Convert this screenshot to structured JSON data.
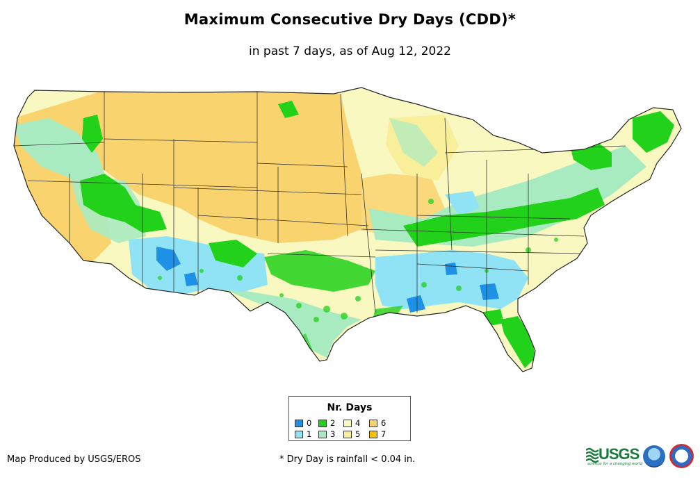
{
  "title": "Maximum Consecutive Dry Days (CDD)*",
  "subtitle": "in past 7 days, as of Aug 12, 2022",
  "legend": {
    "title": "Nr. Days",
    "items": [
      {
        "label": "0",
        "color": "#1e90e6"
      },
      {
        "label": "1",
        "color": "#8fe3f5"
      },
      {
        "label": "2",
        "color": "#22d11a"
      },
      {
        "label": "3",
        "color": "#a9ebc1"
      },
      {
        "label": "4",
        "color": "#f8f8c0"
      },
      {
        "label": "5",
        "color": "#f9ee9a"
      },
      {
        "label": "6",
        "color": "#f9d36e"
      },
      {
        "label": "7",
        "color": "#f7c300"
      }
    ]
  },
  "footer": {
    "produced_by": "Map Produced by USGS/EROS",
    "footnote": "* Dry Day is rainfall < 0.04 in."
  },
  "logos": {
    "usgs_text": "USGS",
    "usgs_tagline": "science for a changing world"
  }
}
